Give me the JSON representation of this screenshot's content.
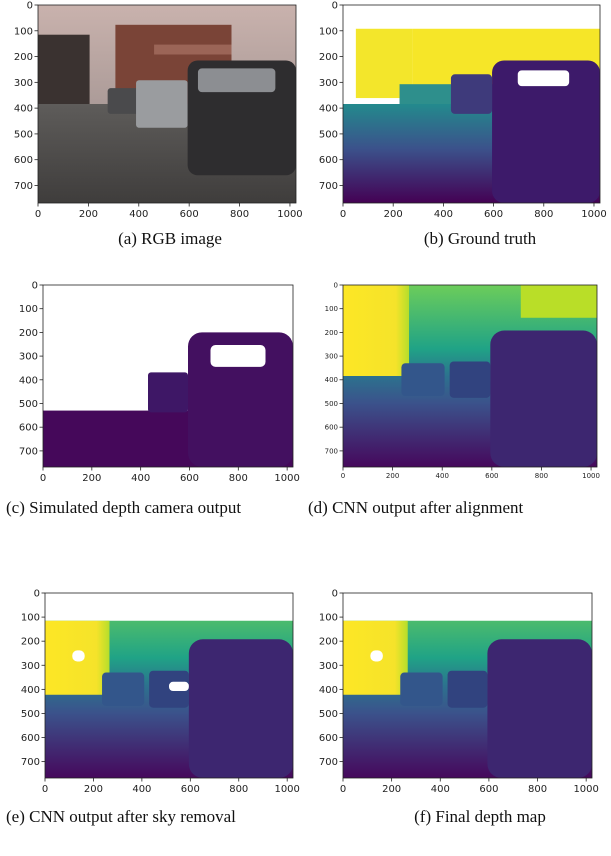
{
  "figure": {
    "panels": [
      {
        "caption": "(a) RGB image",
        "xlim": [
          0,
          1024
        ],
        "ylim": [
          768,
          0
        ],
        "xticks": [
          0,
          200,
          400,
          600,
          800,
          1000
        ],
        "yticks": [
          0,
          100,
          200,
          300,
          400,
          500,
          600,
          700
        ]
      },
      {
        "caption": "(b) Ground truth",
        "xlim": [
          0,
          1024
        ],
        "ylim": [
          768,
          0
        ],
        "xticks": [
          0,
          200,
          400,
          600,
          800,
          1000
        ],
        "yticks": [
          0,
          100,
          200,
          300,
          400,
          500,
          600,
          700
        ]
      },
      {
        "caption": "(c) Simulated depth camera output",
        "xlim": [
          0,
          1024
        ],
        "ylim": [
          768,
          0
        ],
        "xticks": [
          0,
          200,
          400,
          600,
          800,
          1000
        ],
        "yticks": [
          0,
          100,
          200,
          300,
          400,
          500,
          600,
          700
        ]
      },
      {
        "caption": "(d) CNN output after alignment",
        "xlim": [
          0,
          1024
        ],
        "ylim": [
          768,
          0
        ],
        "xticks": [
          0,
          200,
          400,
          600,
          800,
          1000
        ],
        "yticks": [
          0,
          100,
          200,
          300,
          400,
          500,
          600,
          700
        ]
      },
      {
        "caption": "(e) CNN output after sky removal",
        "xlim": [
          0,
          1024
        ],
        "ylim": [
          768,
          0
        ],
        "xticks": [
          0,
          200,
          400,
          600,
          800,
          1000
        ],
        "yticks": [
          0,
          100,
          200,
          300,
          400,
          500,
          600,
          700
        ]
      },
      {
        "caption": "(f) Final depth map",
        "xlim": [
          0,
          1024
        ],
        "ylim": [
          768,
          0
        ],
        "xticks": [
          0,
          200,
          400,
          600,
          800,
          1000
        ],
        "yticks": [
          0,
          100,
          200,
          300,
          400,
          500,
          600,
          700
        ]
      }
    ]
  }
}
